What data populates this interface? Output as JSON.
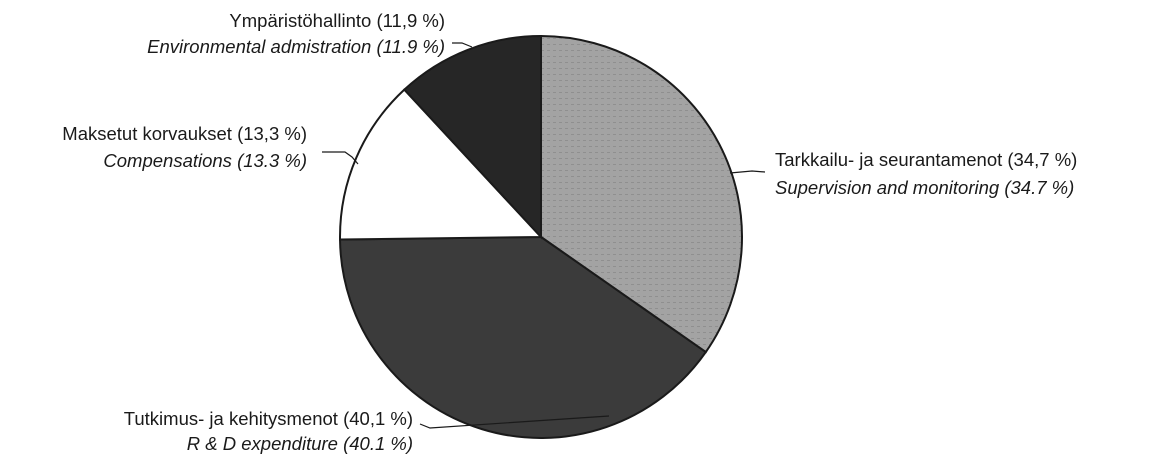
{
  "chart_data": {
    "type": "pie",
    "title": "",
    "slices": [
      {
        "label_fi": "Tarkkailu- ja seurantamenot (34,7 %)",
        "label_en": "Supervision and monitoring (34.7 %)",
        "value": 34.7,
        "fill": "#a3a3a3"
      },
      {
        "label_fi": "Tutkimus- ja kehitysmenot (40,1 %)",
        "label_en": "R & D expenditure (40.1 %)",
        "value": 40.1,
        "fill": "#3b3b3b"
      },
      {
        "label_fi": "Maksetut korvaukset (13,3 %)",
        "label_en": "Compensations (13.3 %)",
        "value": 13.3,
        "fill": "#ffffff"
      },
      {
        "label_fi": "Ympäristöhallinto (11,9 %)",
        "label_en": "Environmental admistration (11.9 %)",
        "value": 11.9,
        "fill": "#262626"
      }
    ],
    "start_position": "12 o'clock",
    "direction": "clockwise"
  },
  "colors": {
    "outline": "#1a1a1a",
    "text": "#1a1a1a",
    "background": "#ffffff"
  }
}
